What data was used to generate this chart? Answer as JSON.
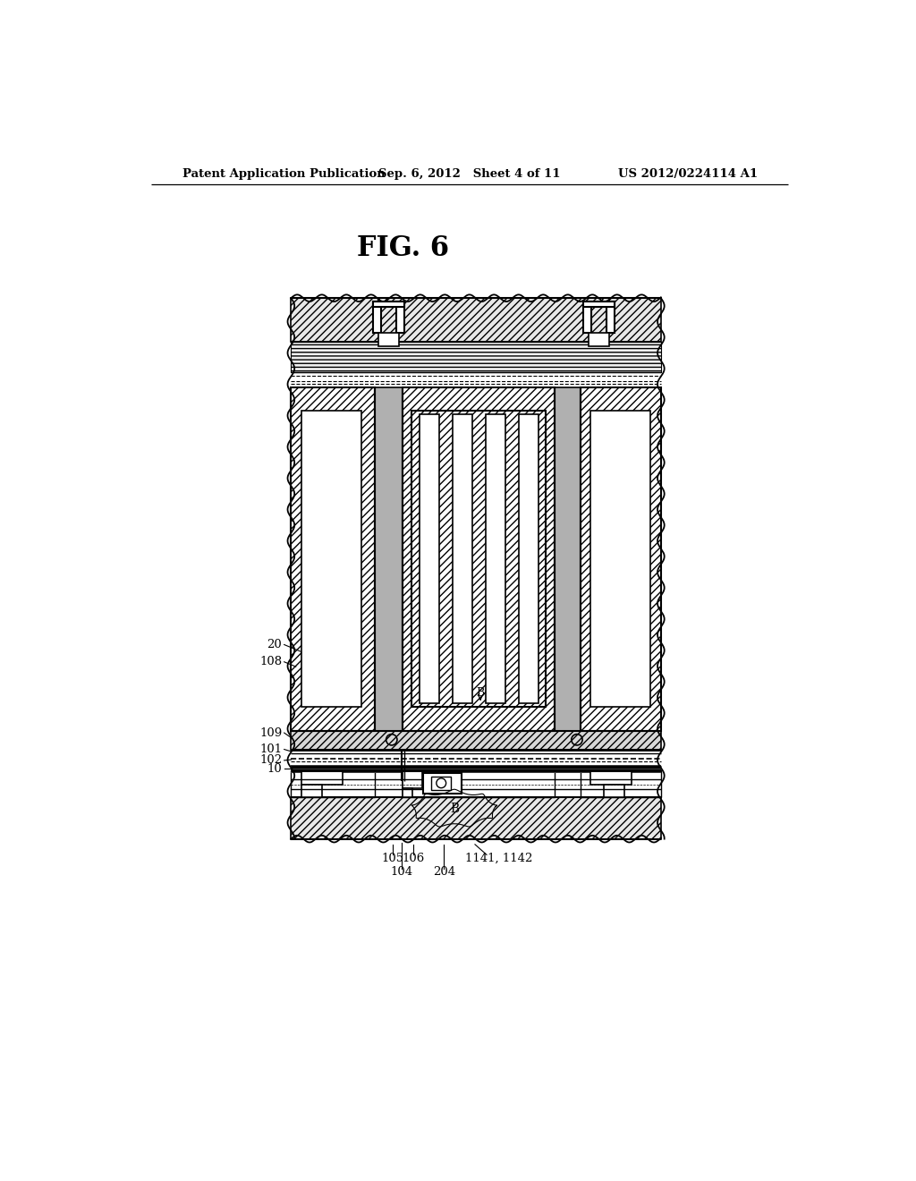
{
  "bg_color": "#ffffff",
  "fg_color": "#000000",
  "header_left": "Patent Application Publication",
  "header_center": "Sep. 6, 2012   Sheet 4 of 11",
  "header_right": "US 2012/0224114 A1",
  "fig_title": "FIG. 6"
}
